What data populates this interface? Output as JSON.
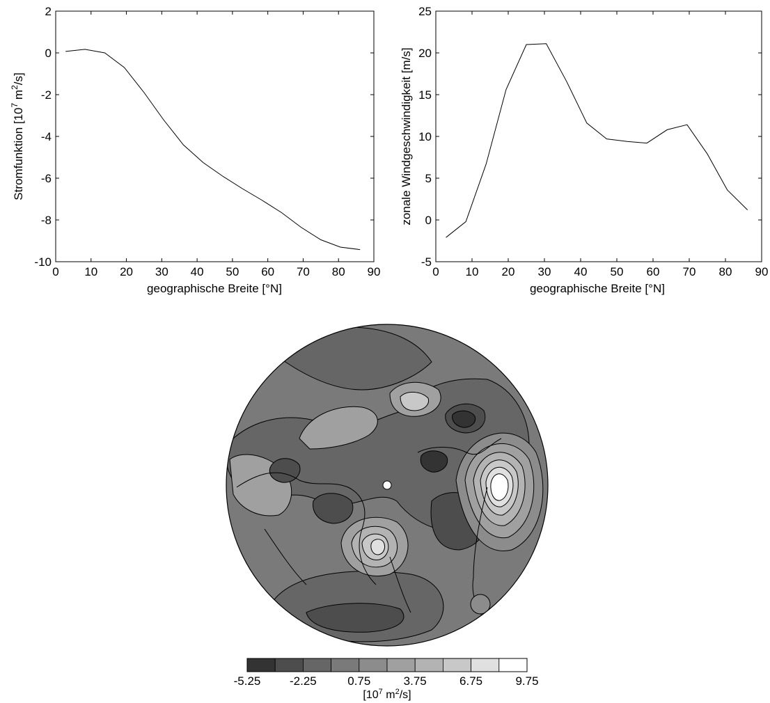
{
  "chart_data": [
    {
      "type": "line",
      "ylabel": "Stromfunktion [10",
      "ylabel_exp": "7",
      "ylabel_unit": " m",
      "ylabel_unit_exp": "2",
      "ylabel_end": "/s]",
      "xlabel": "geographische Breite [°N]",
      "xlim": [
        0,
        90
      ],
      "ylim": [
        -10,
        2
      ],
      "xticks": [
        0,
        10,
        20,
        30,
        40,
        50,
        60,
        70,
        80,
        90
      ],
      "yticks": [
        -10,
        -8,
        -6,
        -4,
        -2,
        0,
        2
      ],
      "grid": false,
      "series": [
        {
          "x": [
            2.8,
            8.3,
            13.9,
            19.4,
            25.0,
            30.5,
            36.1,
            41.7,
            47.2,
            52.8,
            58.3,
            63.9,
            69.4,
            75.0,
            80.5,
            86.1
          ],
          "y": [
            0.07,
            0.17,
            0.0,
            -0.7,
            -1.9,
            -3.2,
            -4.4,
            -5.25,
            -5.9,
            -6.5,
            -7.05,
            -7.65,
            -8.35,
            -8.95,
            -9.3,
            -9.42
          ]
        }
      ]
    },
    {
      "type": "line",
      "ylabel": "zonale Windgeschwindigkeit [m/s]",
      "xlabel": "geographische Breite [°N]",
      "xlim": [
        0,
        90
      ],
      "ylim": [
        -5,
        25
      ],
      "xticks": [
        0,
        10,
        20,
        30,
        40,
        50,
        60,
        70,
        80,
        90
      ],
      "yticks": [
        -5,
        0,
        5,
        10,
        15,
        20,
        25
      ],
      "grid": false,
      "series": [
        {
          "x": [
            2.8,
            8.3,
            13.9,
            19.4,
            25.0,
            30.5,
            36.1,
            41.7,
            47.2,
            52.8,
            58.3,
            63.9,
            69.4,
            75.0,
            80.5,
            86.1
          ],
          "y": [
            -2.1,
            -0.2,
            6.7,
            15.6,
            21.0,
            21.1,
            16.6,
            11.6,
            9.7,
            9.4,
            9.2,
            10.8,
            11.4,
            7.9,
            3.6,
            1.2
          ]
        }
      ]
    },
    {
      "type": "heatmap",
      "projection": "polar stereographic, Northern Hemisphere",
      "colorbar": {
        "levels": [
          -5.25,
          -3.75,
          -2.25,
          -0.75,
          0.75,
          2.25,
          3.75,
          5.25,
          6.75,
          8.25,
          9.75
        ],
        "ticklabels": [
          "-5.25",
          "-2.25",
          "0.75",
          "3.75",
          "6.75",
          "9.75"
        ],
        "colors": [
          "#333333",
          "#4d4d4d",
          "#666666",
          "#7a7a7a",
          "#8c8c8c",
          "#a0a0a0",
          "#b3b3b3",
          "#c8c8c8",
          "#e0e0e0",
          "#ffffff"
        ],
        "label": "[10",
        "label_exp": "7",
        "label_unit": " m",
        "label_unit_exp": "2",
        "label_end": "/s]"
      }
    }
  ]
}
